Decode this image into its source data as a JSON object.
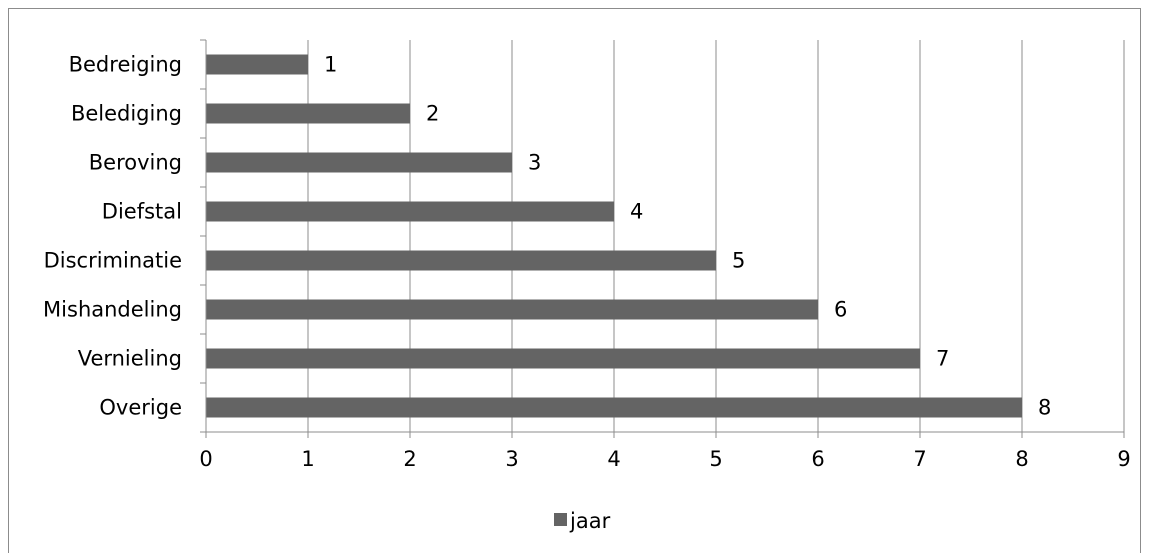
{
  "chart_data": {
    "type": "bar",
    "orientation": "horizontal",
    "categories": [
      "Bedreiging",
      "Belediging",
      "Beroving",
      "Diefstal",
      "Discriminatie",
      "Mishandeling",
      "Vernieling",
      "Overige"
    ],
    "series": [
      {
        "name": "jaar",
        "values": [
          1,
          2,
          3,
          4,
          5,
          6,
          7,
          8
        ],
        "color": "#646464"
      }
    ],
    "data_labels": [
      "1",
      "2",
      "3",
      "4",
      "5",
      "6",
      "7",
      "8"
    ],
    "xlim": [
      0,
      9
    ],
    "x_ticks": [
      "0",
      "1",
      "2",
      "3",
      "4",
      "5",
      "6",
      "7",
      "8",
      "9"
    ],
    "grid": "vertical",
    "legend": {
      "position": "bottom",
      "label": "jaar"
    }
  }
}
